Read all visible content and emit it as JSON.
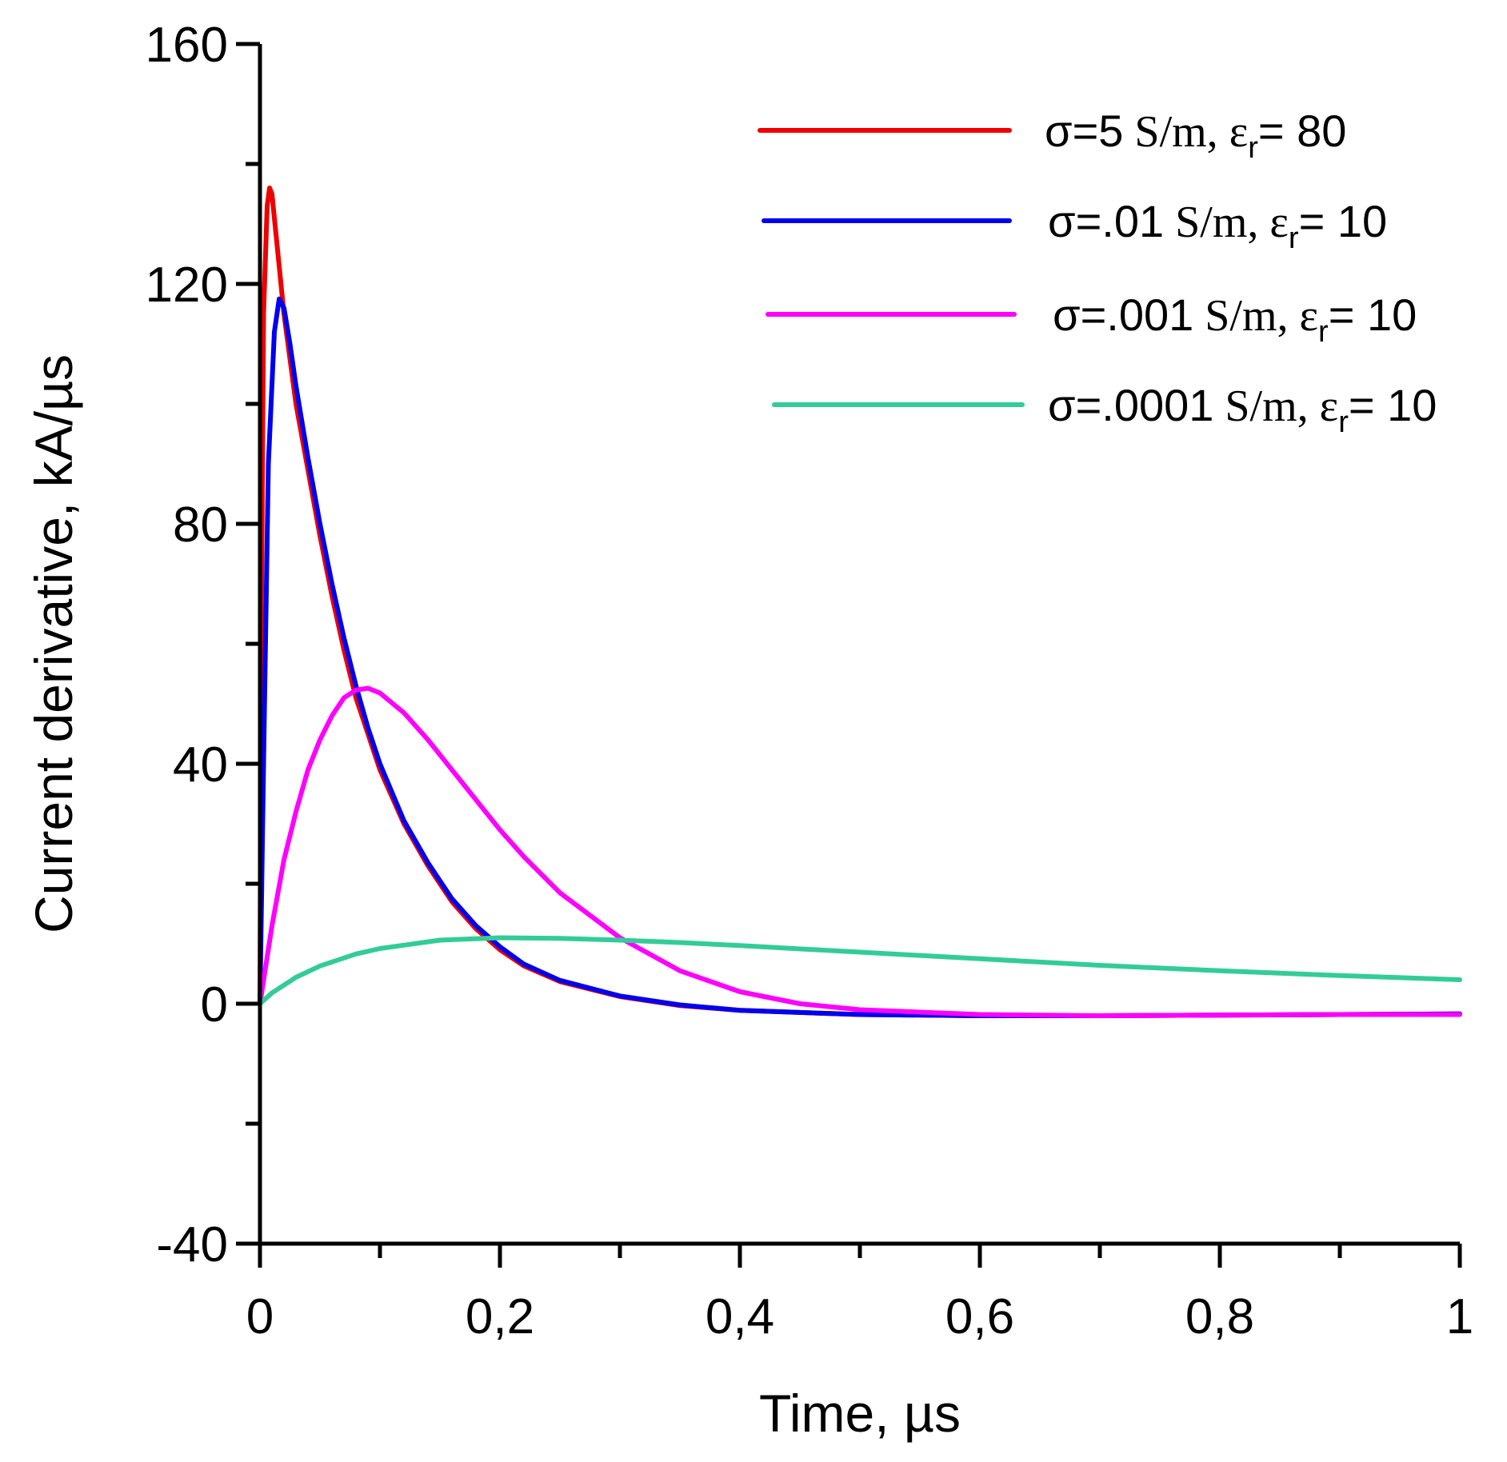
{
  "chart_data": {
    "type": "line",
    "title": "",
    "xlabel": "Time, µs",
    "ylabel": "Current derivative, kA/µs",
    "xlim": [
      0,
      1
    ],
    "ylim": [
      -40,
      160
    ],
    "x_ticks": [
      0,
      0.2,
      0.4,
      0.6,
      0.8,
      1
    ],
    "x_tick_labels": [
      "0",
      "0,2",
      "0,4",
      "0,6",
      "0,8",
      "1"
    ],
    "x_minor_ticks": [
      0.1,
      0.3,
      0.5,
      0.7,
      0.9
    ],
    "y_ticks": [
      -40,
      0,
      40,
      80,
      120,
      160
    ],
    "y_tick_labels": [
      "-40",
      "0",
      "40",
      "80",
      "120",
      "160"
    ],
    "y_minor_ticks": [
      -20,
      20,
      60,
      100,
      140
    ],
    "grid": false,
    "legend_position": "top-right",
    "series": [
      {
        "name": "σ=5 S/m, εr= 80",
        "legend": {
          "sigma": "σ=5",
          "unit": " S/m, ",
          "eps": "ε",
          "sub": "r",
          "val": "= 80"
        },
        "color": "#ee0000",
        "points": [
          [
            0,
            0
          ],
          [
            0.001,
            60
          ],
          [
            0.003,
            115
          ],
          [
            0.006,
            133
          ],
          [
            0.008,
            136
          ],
          [
            0.01,
            135
          ],
          [
            0.015,
            125
          ],
          [
            0.02,
            115
          ],
          [
            0.03,
            100
          ],
          [
            0.04,
            89
          ],
          [
            0.05,
            78
          ],
          [
            0.06,
            68
          ],
          [
            0.07,
            59
          ],
          [
            0.08,
            51
          ],
          [
            0.09,
            45
          ],
          [
            0.1,
            39
          ],
          [
            0.12,
            30
          ],
          [
            0.14,
            23
          ],
          [
            0.16,
            17
          ],
          [
            0.18,
            12.5
          ],
          [
            0.2,
            9
          ],
          [
            0.22,
            6.3
          ],
          [
            0.25,
            3.7
          ],
          [
            0.3,
            1.2
          ],
          [
            0.35,
            -0.3
          ],
          [
            0.4,
            -1.1
          ],
          [
            0.5,
            -1.8
          ],
          [
            0.6,
            -2
          ],
          [
            0.7,
            -2
          ],
          [
            0.8,
            -1.9
          ],
          [
            0.9,
            -1.8
          ],
          [
            1,
            -1.7
          ]
        ]
      },
      {
        "name": "σ=.01 S/m, εr= 10",
        "legend": {
          "sigma": "σ=.01",
          "unit": " S/m, ",
          "eps": "ε",
          "sub": "r",
          "val": "= 10"
        },
        "color": "#0000ee",
        "points": [
          [
            0,
            0
          ],
          [
            0.003,
            40
          ],
          [
            0.007,
            90
          ],
          [
            0.012,
            112
          ],
          [
            0.016,
            117.5
          ],
          [
            0.02,
            116
          ],
          [
            0.025,
            110
          ],
          [
            0.03,
            103
          ],
          [
            0.04,
            91
          ],
          [
            0.05,
            80
          ],
          [
            0.06,
            70
          ],
          [
            0.07,
            61
          ],
          [
            0.08,
            53
          ],
          [
            0.09,
            46
          ],
          [
            0.1,
            40
          ],
          [
            0.12,
            30.5
          ],
          [
            0.14,
            23.5
          ],
          [
            0.16,
            17.5
          ],
          [
            0.18,
            13
          ],
          [
            0.2,
            9.5
          ],
          [
            0.22,
            6.6
          ],
          [
            0.25,
            3.9
          ],
          [
            0.3,
            1.3
          ],
          [
            0.35,
            -0.2
          ],
          [
            0.4,
            -1.1
          ],
          [
            0.5,
            -1.8
          ],
          [
            0.6,
            -2
          ],
          [
            0.7,
            -2
          ],
          [
            0.8,
            -1.9
          ],
          [
            0.9,
            -1.8
          ],
          [
            1,
            -1.7
          ]
        ]
      },
      {
        "name": "σ=.001 S/m, εr= 10",
        "legend": {
          "sigma": "σ=.001",
          "unit": " S/m, ",
          "eps": "ε",
          "sub": "r",
          "val": "= 10"
        },
        "color": "#ff00ff",
        "points": [
          [
            0,
            0
          ],
          [
            0.01,
            13
          ],
          [
            0.02,
            24
          ],
          [
            0.03,
            32
          ],
          [
            0.04,
            39
          ],
          [
            0.05,
            44
          ],
          [
            0.06,
            48
          ],
          [
            0.07,
            51
          ],
          [
            0.08,
            52.3
          ],
          [
            0.09,
            52.6
          ],
          [
            0.1,
            51.8
          ],
          [
            0.12,
            48.5
          ],
          [
            0.14,
            44
          ],
          [
            0.16,
            39
          ],
          [
            0.18,
            34
          ],
          [
            0.2,
            29
          ],
          [
            0.22,
            24.5
          ],
          [
            0.25,
            18.5
          ],
          [
            0.3,
            11
          ],
          [
            0.35,
            5.5
          ],
          [
            0.4,
            2
          ],
          [
            0.45,
            0
          ],
          [
            0.5,
            -1
          ],
          [
            0.6,
            -1.8
          ],
          [
            0.7,
            -2
          ],
          [
            0.8,
            -1.9
          ],
          [
            0.9,
            -1.8
          ],
          [
            1,
            -1.8
          ]
        ]
      },
      {
        "name": "σ=.0001 S/m, εr= 10",
        "legend": {
          "sigma": "σ=.0001",
          "unit": " S/m, ",
          "eps": "ε",
          "sub": "r",
          "val": "= 10"
        },
        "color": "#33cc99",
        "points": [
          [
            0,
            0
          ],
          [
            0.01,
            1.8
          ],
          [
            0.03,
            4.4
          ],
          [
            0.05,
            6.3
          ],
          [
            0.08,
            8.3
          ],
          [
            0.1,
            9.2
          ],
          [
            0.15,
            10.6
          ],
          [
            0.2,
            11
          ],
          [
            0.25,
            10.9
          ],
          [
            0.3,
            10.6
          ],
          [
            0.35,
            10.2
          ],
          [
            0.4,
            9.7
          ],
          [
            0.5,
            8.6
          ],
          [
            0.6,
            7.5
          ],
          [
            0.7,
            6.4
          ],
          [
            0.8,
            5.5
          ],
          [
            0.9,
            4.7
          ],
          [
            1,
            4
          ]
        ]
      }
    ]
  }
}
